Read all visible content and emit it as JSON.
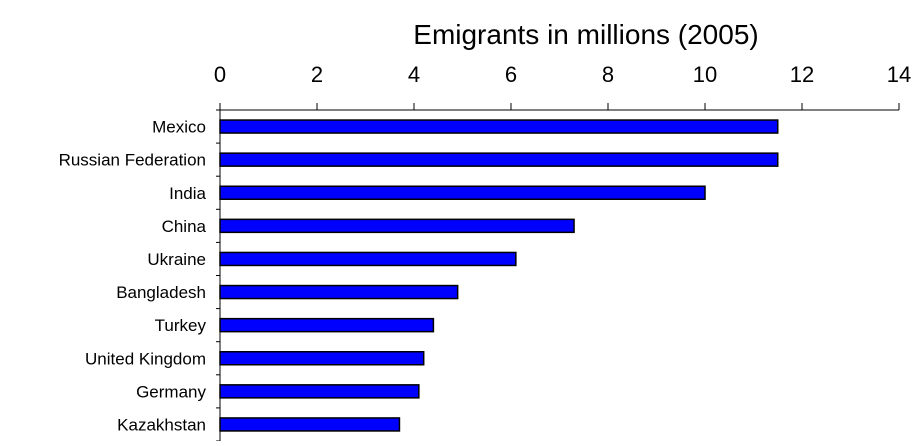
{
  "chart_data": {
    "type": "bar",
    "orientation": "horizontal",
    "title": "Emigrants in millions (2005)",
    "xlabel": "",
    "ylabel": "",
    "categories": [
      "Mexico",
      "Russian Federation",
      "India",
      "China",
      "Ukraine",
      "Bangladesh",
      "Turkey",
      "United Kingdom",
      "Germany",
      "Kazakhstan"
    ],
    "values": [
      11.5,
      11.5,
      10.0,
      7.3,
      6.1,
      4.9,
      4.4,
      4.2,
      4.1,
      3.7
    ],
    "xlim": [
      0,
      14
    ],
    "x_ticks": [
      0,
      2,
      4,
      6,
      8,
      10,
      12,
      14
    ],
    "x_tick_labels": [
      "0",
      "2",
      "4",
      "6",
      "8",
      "10",
      "12",
      "14"
    ],
    "x_axis_position": "top",
    "grid": false,
    "legend": "none",
    "bar_color": "#0000FF",
    "bar_edge_color": "#000000"
  }
}
